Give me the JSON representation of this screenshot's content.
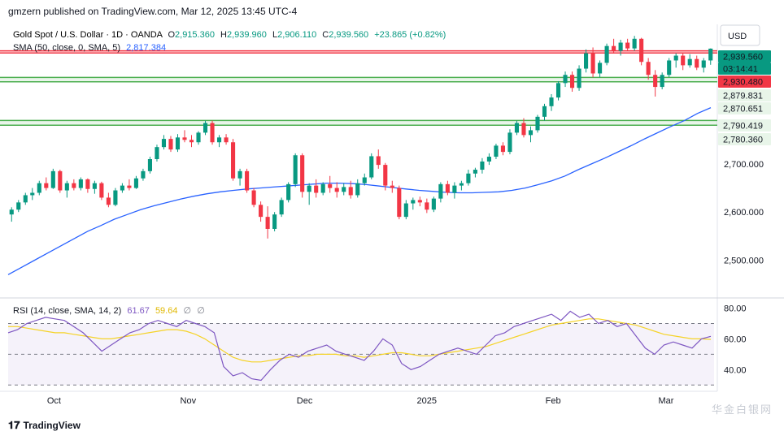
{
  "header": {
    "publisher": "gmzern published on TradingView.com, Mar 12, 2025 13:45 UTC-4"
  },
  "legend": {
    "symbol": "Gold Spot / U.S. Dollar · 1D · OANDA",
    "o_label": "O",
    "o_value": "2,915.360",
    "h_label": "H",
    "h_value": "2,939.960",
    "l_label": "L",
    "l_value": "2,906.110",
    "c_label": "C",
    "c_value": "2,939.560",
    "change": "+23.865 (+0.82%)",
    "sma_label": "SMA (50, close, 0, SMA, 5)",
    "sma_value": "2,817.384",
    "rsi_label": "RSI (14, close, SMA, 14, 2)",
    "rsi_value": "61.67",
    "rsi_sma_value": "59.64",
    "rsi_extra1": "∅",
    "rsi_extra2": "∅"
  },
  "currency": "USD",
  "price_badges": [
    {
      "text": "2,939.560",
      "bg": "#089981",
      "fg": "#ffffff"
    },
    {
      "text": "03:14:41",
      "bg": "#089981",
      "fg": "#ffffff"
    },
    {
      "text": "2,930.480",
      "bg": "#f23645",
      "fg": "#ffffff"
    },
    {
      "text": "2,879.831",
      "bg": "#e8f5e9",
      "fg": "#131722"
    },
    {
      "text": "2,870.651",
      "bg": "#e8f5e9",
      "fg": "#131722"
    },
    {
      "text": "2,790.419",
      "bg": "#e8f5e9",
      "fg": "#131722"
    },
    {
      "text": "2,780.360",
      "bg": "#e8f5e9",
      "fg": "#131722"
    }
  ],
  "footer": {
    "brand": "TradingView"
  },
  "watermark": "华金白银网",
  "colors": {
    "up": "#089981",
    "down": "#f23645",
    "sma": "#2962ff",
    "rsi": "#7e57c2",
    "rsi_sma": "#f5d327",
    "zone_red": "#f23645",
    "zone_green": "#4caf50"
  },
  "chart_data": [
    {
      "type": "candlestick",
      "symbol": "XAUUSD",
      "timeframe": "1D",
      "x_labels": [
        "Oct",
        "Nov",
        "Dec",
        "2025",
        "Feb",
        "Mar"
      ],
      "y_ticks": [
        2500,
        2600,
        2700
      ],
      "ylim": [
        2430,
        2990
      ],
      "zones": [
        {
          "color": "red",
          "from": 2930.48,
          "to": 2935.0
        },
        {
          "color": "green",
          "from": 2870.651,
          "to": 2879.831
        },
        {
          "color": "green",
          "from": 2780.36,
          "to": 2790.419
        }
      ],
      "candles": [
        [
          2595,
          2610,
          2580,
          2605
        ],
        [
          2605,
          2625,
          2600,
          2620
        ],
        [
          2620,
          2640,
          2615,
          2635
        ],
        [
          2635,
          2650,
          2625,
          2640
        ],
        [
          2640,
          2665,
          2635,
          2660
        ],
        [
          2660,
          2672,
          2645,
          2650
        ],
        [
          2650,
          2690,
          2648,
          2685
        ],
        [
          2685,
          2688,
          2640,
          2645
        ],
        [
          2645,
          2665,
          2630,
          2660
        ],
        [
          2660,
          2668,
          2645,
          2650
        ],
        [
          2650,
          2672,
          2645,
          2668
        ],
        [
          2668,
          2670,
          2640,
          2648
        ],
        [
          2648,
          2665,
          2638,
          2660
        ],
        [
          2660,
          2663,
          2625,
          2630
        ],
        [
          2630,
          2640,
          2610,
          2615
        ],
        [
          2615,
          2650,
          2612,
          2645
        ],
        [
          2645,
          2660,
          2640,
          2655
        ],
        [
          2655,
          2668,
          2645,
          2650
        ],
        [
          2650,
          2675,
          2648,
          2670
        ],
        [
          2670,
          2690,
          2665,
          2685
        ],
        [
          2685,
          2715,
          2680,
          2710
        ],
        [
          2710,
          2740,
          2705,
          2735
        ],
        [
          2735,
          2760,
          2730,
          2752
        ],
        [
          2752,
          2758,
          2725,
          2730
        ],
        [
          2730,
          2762,
          2725,
          2755
        ],
        [
          2755,
          2770,
          2745,
          2750
        ],
        [
          2750,
          2760,
          2735,
          2745
        ],
        [
          2745,
          2768,
          2740,
          2765
        ],
        [
          2765,
          2790,
          2760,
          2785
        ],
        [
          2785,
          2790,
          2740,
          2745
        ],
        [
          2745,
          2760,
          2735,
          2755
        ],
        [
          2755,
          2762,
          2740,
          2745
        ],
        [
          2745,
          2752,
          2665,
          2670
        ],
        [
          2670,
          2690,
          2655,
          2685
        ],
        [
          2685,
          2690,
          2640,
          2645
        ],
        [
          2645,
          2650,
          2610,
          2615
        ],
        [
          2615,
          2622,
          2580,
          2590
        ],
        [
          2590,
          2612,
          2545,
          2565
        ],
        [
          2565,
          2600,
          2560,
          2595
        ],
        [
          2595,
          2630,
          2590,
          2625
        ],
        [
          2625,
          2662,
          2620,
          2658
        ],
        [
          2658,
          2722,
          2652,
          2718
        ],
        [
          2718,
          2722,
          2630,
          2642
        ],
        [
          2642,
          2660,
          2615,
          2655
        ],
        [
          2655,
          2668,
          2630,
          2640
        ],
        [
          2640,
          2662,
          2635,
          2658
        ],
        [
          2658,
          2675,
          2640,
          2650
        ],
        [
          2650,
          2662,
          2630,
          2642
        ],
        [
          2642,
          2660,
          2635,
          2652
        ],
        [
          2652,
          2665,
          2628,
          2635
        ],
        [
          2635,
          2668,
          2630,
          2660
        ],
        [
          2660,
          2680,
          2655,
          2672
        ],
        [
          2672,
          2722,
          2668,
          2716
        ],
        [
          2716,
          2730,
          2690,
          2698
        ],
        [
          2698,
          2702,
          2645,
          2655
        ],
        [
          2655,
          2665,
          2640,
          2650
        ],
        [
          2650,
          2655,
          2585,
          2590
        ],
        [
          2590,
          2625,
          2585,
          2618
        ],
        [
          2618,
          2630,
          2605,
          2625
        ],
        [
          2625,
          2632,
          2612,
          2620
        ],
        [
          2620,
          2628,
          2598,
          2605
        ],
        [
          2605,
          2632,
          2600,
          2628
        ],
        [
          2628,
          2662,
          2620,
          2658
        ],
        [
          2658,
          2665,
          2635,
          2640
        ],
        [
          2640,
          2662,
          2628,
          2655
        ],
        [
          2655,
          2665,
          2645,
          2660
        ],
        [
          2660,
          2688,
          2655,
          2680
        ],
        [
          2680,
          2692,
          2672,
          2688
        ],
        [
          2688,
          2712,
          2680,
          2705
        ],
        [
          2705,
          2722,
          2698,
          2715
        ],
        [
          2715,
          2742,
          2710,
          2738
        ],
        [
          2738,
          2745,
          2718,
          2725
        ],
        [
          2725,
          2772,
          2720,
          2765
        ],
        [
          2765,
          2790,
          2760,
          2785
        ],
        [
          2785,
          2795,
          2755,
          2760
        ],
        [
          2760,
          2778,
          2745,
          2770
        ],
        [
          2770,
          2802,
          2765,
          2798
        ],
        [
          2798,
          2825,
          2790,
          2820
        ],
        [
          2820,
          2845,
          2810,
          2838
        ],
        [
          2838,
          2872,
          2832,
          2868
        ],
        [
          2868,
          2892,
          2860,
          2885
        ],
        [
          2885,
          2892,
          2850,
          2858
        ],
        [
          2858,
          2905,
          2852,
          2898
        ],
        [
          2898,
          2938,
          2890,
          2930
        ],
        [
          2930,
          2942,
          2880,
          2888
        ],
        [
          2888,
          2915,
          2880,
          2910
        ],
        [
          2910,
          2950,
          2905,
          2945
        ],
        [
          2945,
          2960,
          2930,
          2935
        ],
        [
          2935,
          2958,
          2925,
          2952
        ],
        [
          2952,
          2960,
          2935,
          2940
        ],
        [
          2940,
          2966,
          2935,
          2960
        ],
        [
          2960,
          2962,
          2905,
          2912
        ],
        [
          2912,
          2920,
          2875,
          2885
        ],
        [
          2885,
          2895,
          2840,
          2860
        ],
        [
          2860,
          2890,
          2855,
          2885
        ],
        [
          2885,
          2920,
          2880,
          2915
        ],
        [
          2915,
          2930,
          2900,
          2925
        ],
        [
          2925,
          2930,
          2895,
          2905
        ],
        [
          2905,
          2928,
          2900,
          2918
        ],
        [
          2918,
          2925,
          2895,
          2900
        ],
        [
          2900,
          2920,
          2890,
          2915
        ],
        [
          2915,
          2940,
          2906,
          2939.56
        ]
      ],
      "sma50": [
        2470,
        2485,
        2500,
        2515,
        2530,
        2545,
        2560,
        2572,
        2585,
        2595,
        2605,
        2613,
        2620,
        2627,
        2633,
        2638,
        2642,
        2645,
        2648,
        2650,
        2652,
        2654,
        2656,
        2658,
        2660,
        2660,
        2659,
        2657,
        2654,
        2651,
        2648,
        2645,
        2643,
        2641,
        2640,
        2640,
        2641,
        2642,
        2645,
        2650,
        2657,
        2665,
        2675,
        2688,
        2700,
        2712,
        2725,
        2738,
        2752,
        2765,
        2778,
        2790,
        2805,
        2817
      ]
    },
    {
      "type": "line",
      "title": "RSI",
      "yticks": [
        40,
        60,
        80
      ],
      "ylim": [
        28,
        84
      ],
      "bands": [
        30,
        50,
        70
      ],
      "rsi": [
        64,
        66,
        70,
        72,
        74,
        73,
        72,
        68,
        64,
        58,
        52,
        56,
        60,
        64,
        66,
        70,
        72,
        70,
        68,
        72,
        70,
        68,
        64,
        42,
        36,
        38,
        34,
        33,
        40,
        46,
        50,
        48,
        52,
        54,
        56,
        52,
        50,
        48,
        46,
        52,
        60,
        56,
        44,
        40,
        42,
        46,
        50,
        52,
        54,
        52,
        50,
        56,
        62,
        64,
        68,
        70,
        72,
        74,
        76,
        72,
        78,
        74,
        76,
        70,
        72,
        68,
        70,
        62,
        54,
        50,
        56,
        58,
        56,
        54,
        60,
        61.67
      ],
      "rsi_sma": [
        68,
        68,
        67,
        66,
        65,
        64,
        64,
        63,
        62,
        61,
        60,
        60,
        61,
        62,
        63,
        64,
        65,
        66,
        66,
        65,
        63,
        60,
        56,
        52,
        48,
        46,
        45,
        45,
        46,
        47,
        48,
        49,
        49,
        50,
        50,
        50,
        49,
        49,
        48,
        49,
        50,
        51,
        51,
        50,
        49,
        49,
        50,
        51,
        52,
        53,
        54,
        55,
        57,
        59,
        61,
        63,
        65,
        67,
        69,
        70,
        71,
        72,
        73,
        73,
        72,
        71,
        70,
        69,
        67,
        65,
        63,
        62,
        61,
        60,
        60,
        59.64
      ]
    }
  ]
}
